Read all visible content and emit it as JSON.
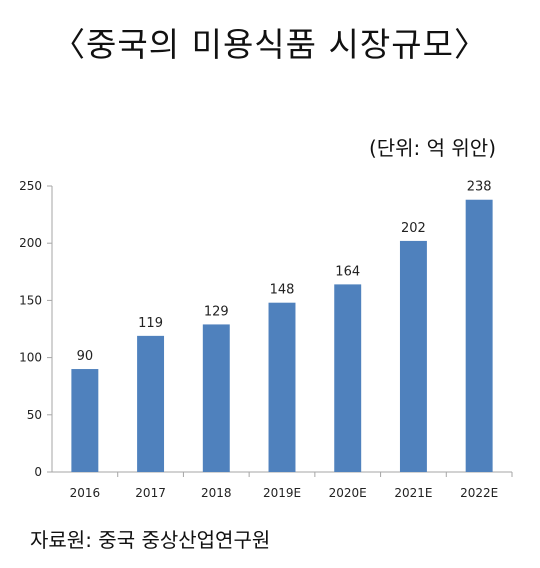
{
  "title": "〈중국의 미용식품 시장규모〉",
  "unit_label": "(단위: 억 위안)",
  "source": "자료원: 중국 중상산업연구원",
  "colors": {
    "bar": "#4F81BD",
    "axis": "#A6A6A6"
  },
  "chart_data": {
    "type": "bar",
    "categories": [
      "2016",
      "2017",
      "2018",
      "2019E",
      "2020E",
      "2021E",
      "2022E"
    ],
    "values": [
      90,
      119,
      129,
      148,
      164,
      202,
      238
    ],
    "data_labels": [
      "90",
      "119",
      "129",
      "148",
      "164",
      "202",
      "238"
    ],
    "yticks": [
      0,
      50,
      100,
      150,
      200,
      250
    ],
    "ylim": [
      0,
      250
    ],
    "grid": false,
    "legend": "none"
  }
}
